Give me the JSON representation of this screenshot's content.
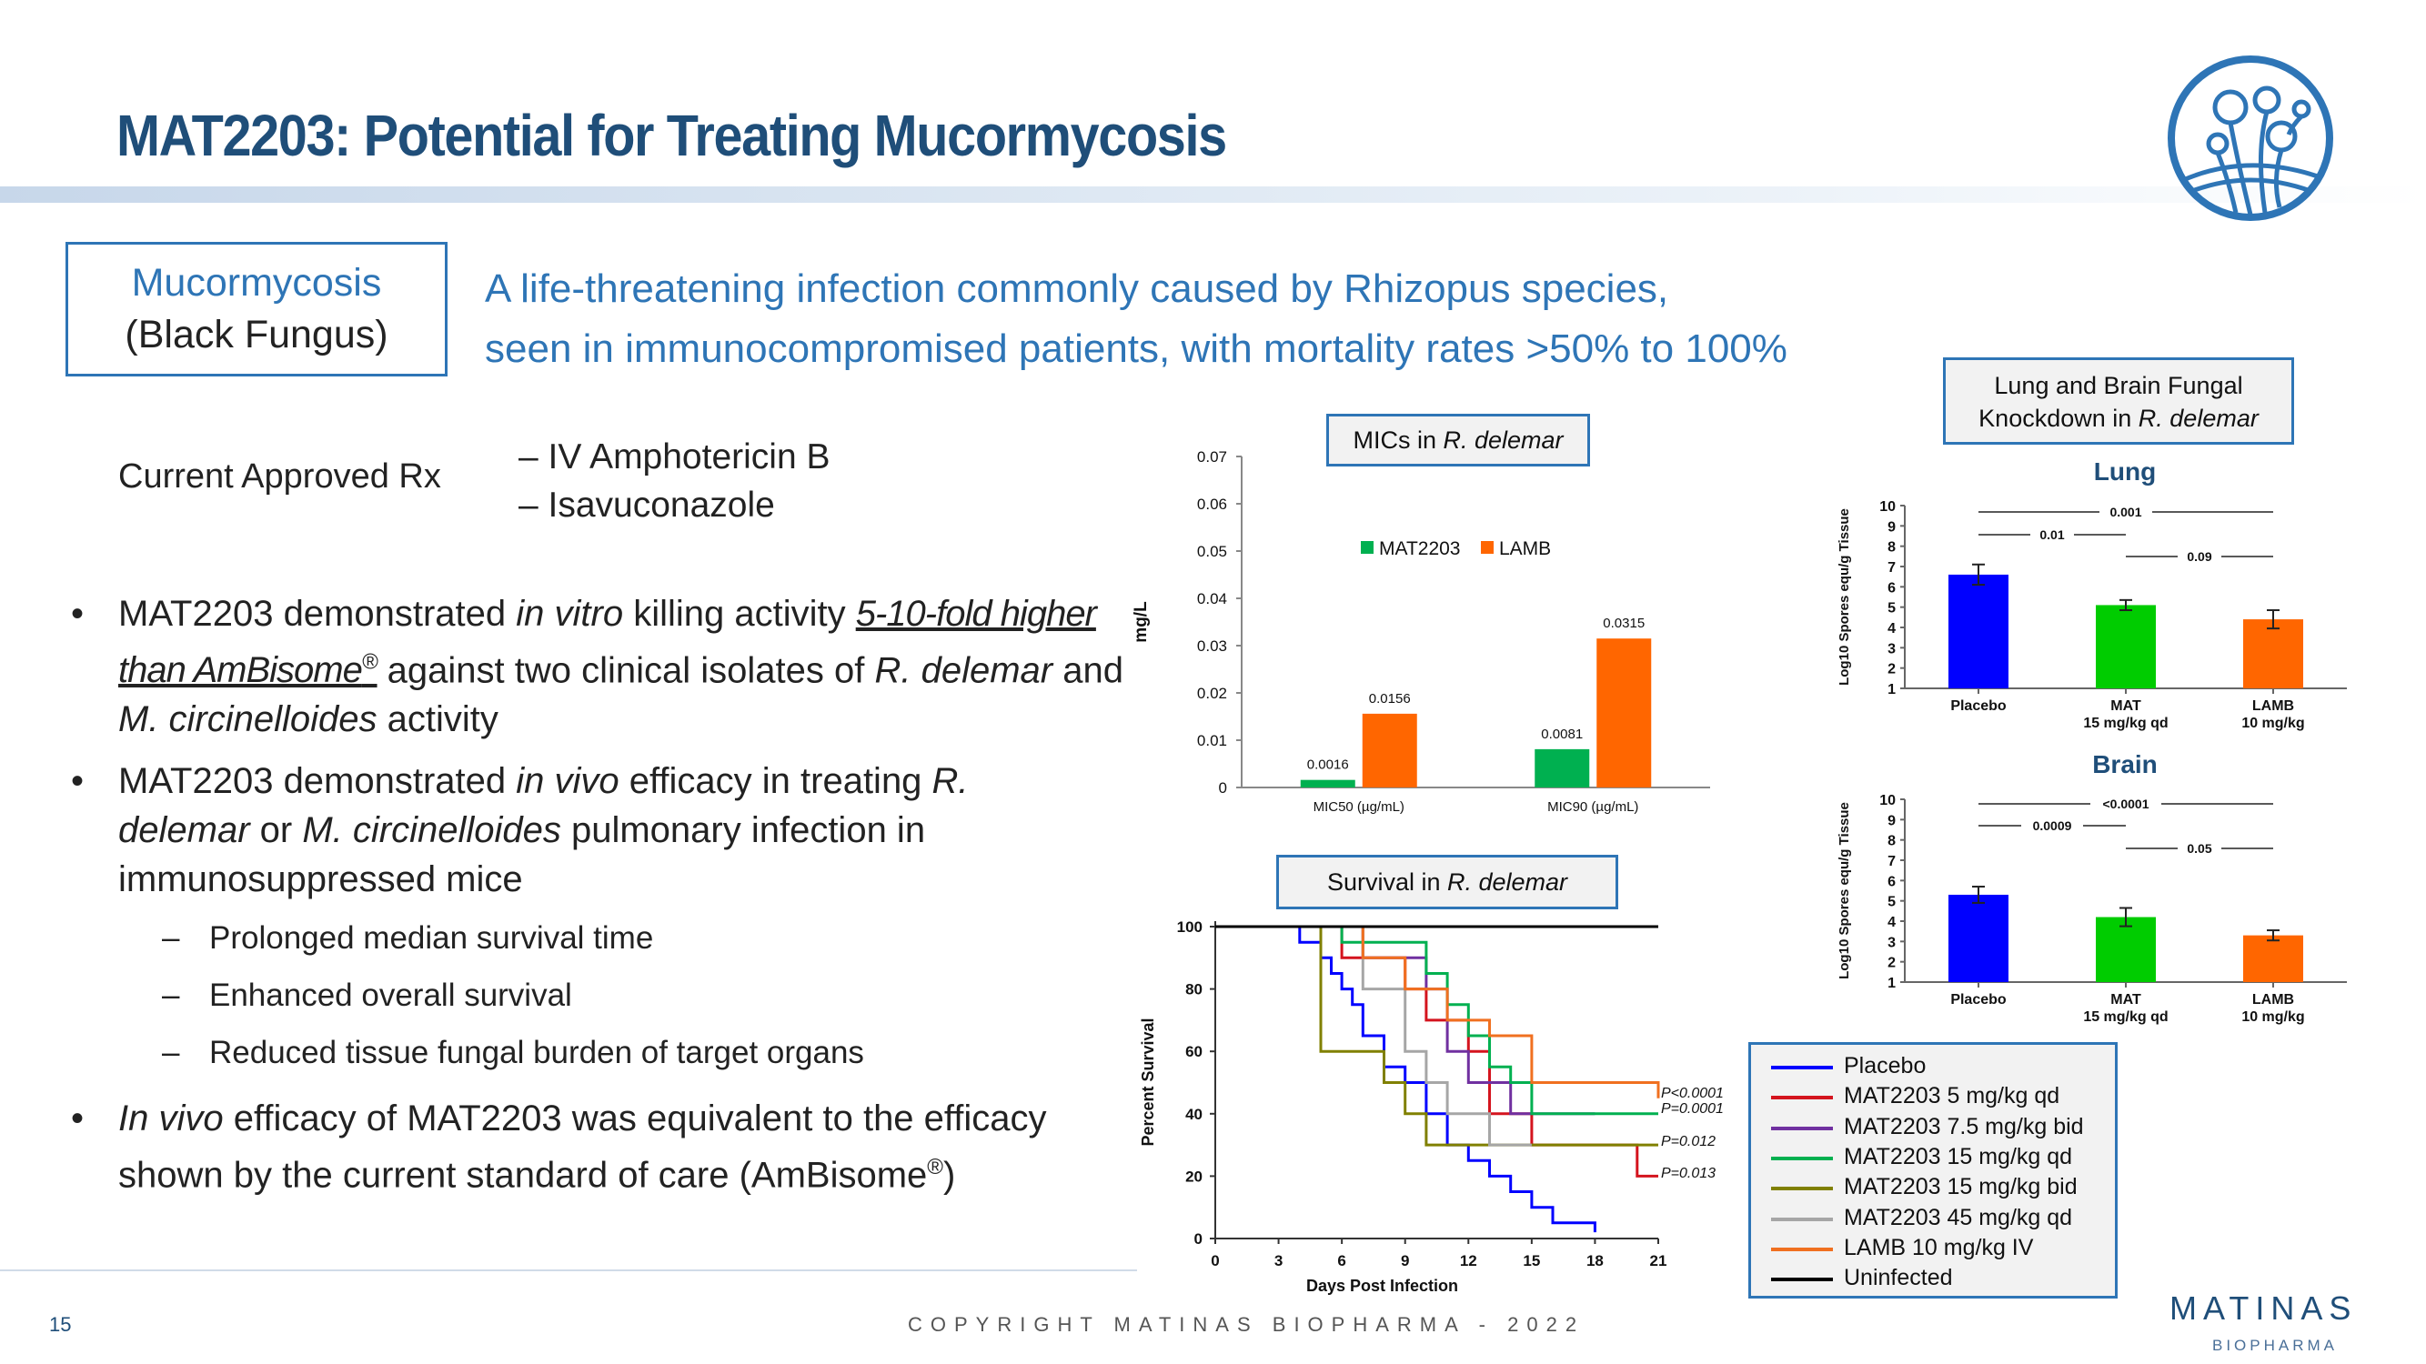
{
  "slide": {
    "title": "MAT2203: Potential for Treating Mucormycosis",
    "definition": {
      "term_line1": "Mucormycosis",
      "term_line2": "(Black Fungus)",
      "description_line1": "A life-threatening infection commonly caused by Rhizopus species,",
      "description_line2": "seen in immunocompromised patients, with mortality rates >50% to 100%"
    },
    "approved_rx": {
      "label": "Current Approved Rx",
      "items": [
        "– IV Amphotericin B",
        "– Isavuconazole"
      ]
    },
    "bullets": {
      "b1": {
        "t1": "MAT2203 demonstrated ",
        "t2": "in vitro",
        "t3": " killing activity ",
        "t4": "5-10-fold higher than AmBisome",
        "t5": "®",
        "t6": " against two clinical isolates of ",
        "t7": "R. delemar",
        "t8": " and ",
        "t9": "M. circinelloides",
        "t10": " activity"
      },
      "b2": {
        "t1": "MAT2203 demonstrated ",
        "t2": "in vivo",
        "t3": " efficacy in treating ",
        "t4": "R. delemar",
        "t5": " or ",
        "t6": "M. circinelloides",
        "t7": " pulmonary infection in immunosuppressed mice"
      },
      "subs": [
        "Prolonged median survival time",
        "Enhanced overall survival",
        "Reduced tissue fungal burden of target organs"
      ],
      "b3": {
        "t1": "In vivo",
        "t2": " efficacy of MAT2203 was equivalent to the efficacy shown by the current standard of care (AmBisome",
        "t3": "®",
        "t4": ")"
      }
    },
    "footer": {
      "page": "15",
      "copyright": "COPYRIGHT MATINAS BIOPHARMA - 2022",
      "brand": "MATINAS",
      "brand_sub": "BIOPHARMA"
    },
    "colors": {
      "title": "#1f4e79",
      "accent": "#2e75b6",
      "mat": "#00b050",
      "lamb": "#ff6600",
      "placebo": "#0000ff"
    }
  },
  "chart_data": [
    {
      "id": "mic",
      "type": "bar",
      "title_prefix": "MICs in ",
      "title_species": "R. delemar",
      "ylabel": "mg/L",
      "ylim": [
        0,
        0.07
      ],
      "yticks": [
        "0",
        "0.01",
        "0.02",
        "0.03",
        "0.04",
        "0.05",
        "0.06",
        "0.07"
      ],
      "categories": [
        "MIC50 (µg/mL)",
        "MIC90 (µg/mL)"
      ],
      "series": [
        {
          "name": "MAT2203",
          "color": "#00b050",
          "values": [
            0.0016,
            0.0081
          ],
          "labels": [
            "0.0016",
            "0.0081"
          ]
        },
        {
          "name": "LAMB",
          "color": "#ff6600",
          "values": [
            0.0156,
            0.0315
          ],
          "labels": [
            "0.0156",
            "0.0315"
          ]
        }
      ]
    },
    {
      "id": "survival",
      "type": "line",
      "title_prefix": "Survival in ",
      "title_species": "R. delemar",
      "xlabel": "Days Post Infection",
      "ylabel": "Percent Survival",
      "xlim": [
        0,
        21
      ],
      "ylim": [
        0,
        100
      ],
      "xticks": [
        "0",
        "3",
        "6",
        "9",
        "12",
        "15",
        "18",
        "21"
      ],
      "yticks": [
        "0",
        "20",
        "40",
        "60",
        "80",
        "100"
      ],
      "pvalues": [
        "P<0.0001",
        "P=0.0001",
        "P=0.012",
        "P=0.013"
      ],
      "series": [
        {
          "name": "Placebo",
          "color": "#0000ff",
          "points": [
            [
              0,
              100
            ],
            [
              4,
              100
            ],
            [
              4,
              95
            ],
            [
              5,
              95
            ],
            [
              5,
              90
            ],
            [
              5.5,
              90
            ],
            [
              5.5,
              85
            ],
            [
              6,
              85
            ],
            [
              6,
              80
            ],
            [
              6.5,
              80
            ],
            [
              6.5,
              75
            ],
            [
              7,
              75
            ],
            [
              7,
              65
            ],
            [
              8,
              65
            ],
            [
              8,
              55
            ],
            [
              9,
              55
            ],
            [
              9,
              50
            ],
            [
              10,
              50
            ],
            [
              10,
              40
            ],
            [
              11,
              40
            ],
            [
              11,
              30
            ],
            [
              12,
              30
            ],
            [
              12,
              25
            ],
            [
              13,
              25
            ],
            [
              13,
              20
            ],
            [
              14,
              20
            ],
            [
              14,
              15
            ],
            [
              15,
              15
            ],
            [
              15,
              10
            ],
            [
              16,
              10
            ],
            [
              16,
              5
            ],
            [
              18,
              5
            ],
            [
              18,
              2
            ]
          ]
        },
        {
          "name": "MAT2203 5 mg/kg qd",
          "color": "#d4141e",
          "points": [
            [
              0,
              100
            ],
            [
              6,
              100
            ],
            [
              6,
              90
            ],
            [
              9,
              90
            ],
            [
              9,
              80
            ],
            [
              10,
              80
            ],
            [
              10,
              70
            ],
            [
              12,
              70
            ],
            [
              12,
              60
            ],
            [
              13,
              60
            ],
            [
              13,
              40
            ],
            [
              15,
              40
            ],
            [
              15,
              30
            ],
            [
              20,
              30
            ],
            [
              20,
              20
            ],
            [
              21,
              20
            ]
          ]
        },
        {
          "name": "MAT2203 7.5 mg/kg bid",
          "color": "#7030a0",
          "points": [
            [
              0,
              100
            ],
            [
              7,
              100
            ],
            [
              7,
              90
            ],
            [
              10,
              90
            ],
            [
              10,
              80
            ],
            [
              11,
              80
            ],
            [
              11,
              60
            ],
            [
              12,
              60
            ],
            [
              12,
              50
            ],
            [
              14,
              50
            ],
            [
              14,
              40
            ],
            [
              18,
              40
            ],
            [
              18,
              40
            ]
          ]
        },
        {
          "name": "MAT2203 15 mg/kg qd",
          "color": "#00b050",
          "points": [
            [
              0,
              100
            ],
            [
              6,
              100
            ],
            [
              6,
              95
            ],
            [
              10,
              95
            ],
            [
              10,
              85
            ],
            [
              11,
              85
            ],
            [
              11,
              75
            ],
            [
              12,
              75
            ],
            [
              12,
              65
            ],
            [
              13,
              65
            ],
            [
              13,
              55
            ],
            [
              14,
              55
            ],
            [
              14,
              50
            ],
            [
              15,
              50
            ],
            [
              15,
              40
            ],
            [
              21,
              40
            ]
          ]
        },
        {
          "name": "MAT2203 15 mg/kg bid",
          "color": "#808000",
          "points": [
            [
              0,
              100
            ],
            [
              5,
              100
            ],
            [
              5,
              60
            ],
            [
              8,
              60
            ],
            [
              8,
              50
            ],
            [
              9,
              50
            ],
            [
              9,
              40
            ],
            [
              10,
              40
            ],
            [
              10,
              30
            ],
            [
              21,
              30
            ]
          ]
        },
        {
          "name": "MAT2203 45 mg/kg qd",
          "color": "#a6a6a6",
          "points": [
            [
              0,
              100
            ],
            [
              7,
              100
            ],
            [
              7,
              80
            ],
            [
              9,
              80
            ],
            [
              9,
              60
            ],
            [
              10,
              60
            ],
            [
              10,
              50
            ],
            [
              11,
              50
            ],
            [
              11,
              40
            ],
            [
              13,
              40
            ],
            [
              13,
              30
            ],
            [
              15,
              30
            ]
          ]
        },
        {
          "name": "LAMB 10 mg/kg IV",
          "color": "#f07020",
          "points": [
            [
              0,
              100
            ],
            [
              7,
              100
            ],
            [
              7,
              90
            ],
            [
              9,
              90
            ],
            [
              9,
              80
            ],
            [
              11,
              80
            ],
            [
              11,
              70
            ],
            [
              13,
              70
            ],
            [
              13,
              65
            ],
            [
              15,
              65
            ],
            [
              15,
              50
            ],
            [
              21,
              50
            ],
            [
              21,
              45
            ]
          ]
        },
        {
          "name": "Uninfected",
          "color": "#000000",
          "points": [
            [
              0,
              100
            ],
            [
              21,
              100
            ]
          ]
        }
      ]
    },
    {
      "id": "knockdown",
      "type": "bar",
      "title_line1": "Lung and Brain Fungal",
      "title_line2_prefix": "Knockdown in ",
      "title_species": "R. delemar",
      "ylabel": "Log10 Spores equ/g Tissue",
      "ylim": [
        1,
        10
      ],
      "yticks": [
        "1",
        "2",
        "3",
        "4",
        "5",
        "6",
        "7",
        "8",
        "9",
        "10"
      ],
      "categories": [
        "Placebo",
        "MAT",
        "LAMB"
      ],
      "category_sub": [
        "",
        "15 mg/kg qd",
        "10 mg/kg"
      ],
      "bar_colors": [
        "#0000ff",
        "#00cc00",
        "#ff6600"
      ],
      "panels": [
        {
          "name": "Lung",
          "values": [
            6.6,
            5.1,
            4.4
          ],
          "errors": [
            0.5,
            0.25,
            0.45
          ],
          "pvalues": [
            "0.001",
            "0.01",
            "0.09"
          ]
        },
        {
          "name": "Brain",
          "values": [
            5.3,
            4.2,
            3.3
          ],
          "errors": [
            0.4,
            0.45,
            0.25
          ],
          "pvalues": [
            "<0.0001",
            "0.0009",
            "0.05"
          ]
        }
      ]
    }
  ]
}
